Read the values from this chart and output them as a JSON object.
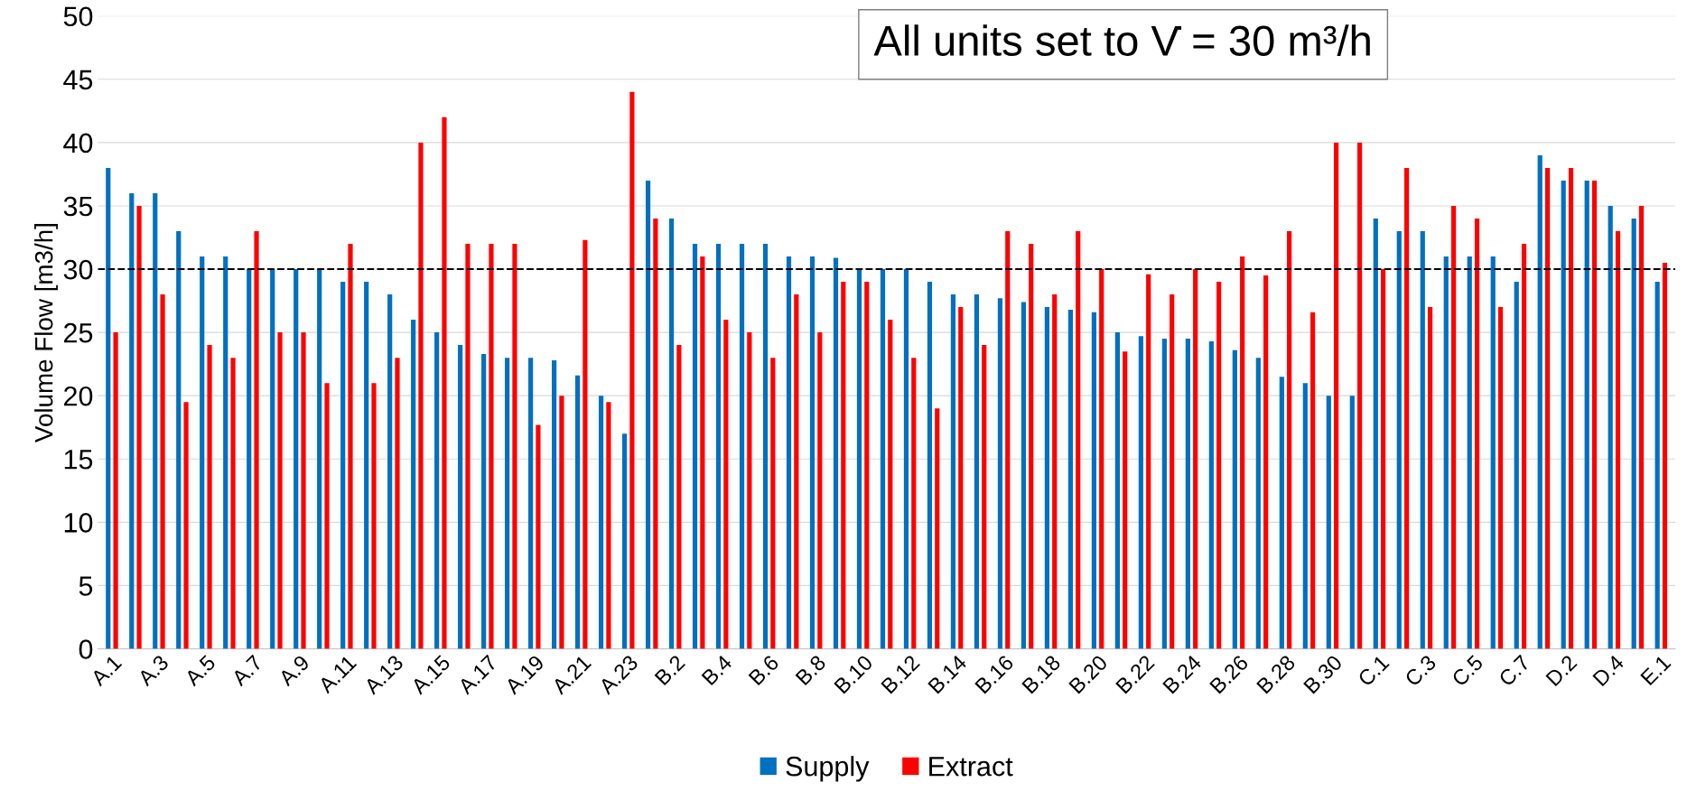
{
  "chart_data": {
    "type": "bar",
    "ylabel": "Volume Flow [m3/h]",
    "categories": [
      "A.1",
      null,
      "A.3",
      null,
      "A.5",
      null,
      "A.7",
      null,
      "A.9",
      null,
      "A.11",
      null,
      "A.13",
      null,
      "A.15",
      null,
      "A.17",
      null,
      "A.19",
      null,
      "A.21",
      null,
      "A.23",
      null,
      "B.2",
      null,
      "B.4",
      null,
      "B.6",
      null,
      "B.8",
      null,
      "B.10",
      null,
      "B.12",
      null,
      "B.14",
      null,
      "B.16",
      null,
      "B.18",
      null,
      "B.20",
      null,
      "B.22",
      null,
      "B.24",
      null,
      "B.26",
      null,
      "B.28",
      null,
      "B.30",
      null,
      "C.1",
      null,
      "C.3",
      null,
      "C.5",
      null,
      "C.7",
      null,
      "D.2",
      null,
      "D.4",
      null,
      "E.1"
    ],
    "series": [
      {
        "name": "Supply",
        "color": "#0070c0",
        "values": [
          38,
          36,
          36,
          33,
          31,
          31,
          30,
          30,
          30,
          30,
          29,
          29,
          28,
          26,
          25,
          24,
          23.3,
          23,
          23,
          22.8,
          21.6,
          20,
          17,
          37,
          34,
          32,
          32,
          32,
          32,
          31,
          31,
          30.9,
          30,
          30,
          30,
          29,
          28,
          28,
          27.7,
          27.4,
          27,
          26.8,
          26.6,
          25,
          24.7,
          24.5,
          24.5,
          24.3,
          23.6,
          23,
          21.5,
          21,
          20,
          20,
          34,
          33,
          33,
          31,
          31,
          31,
          29,
          39,
          37,
          37,
          35,
          34,
          29
        ]
      },
      {
        "name": "Extract",
        "color": "#ff0000",
        "values": [
          25,
          35,
          28,
          19.5,
          24,
          23,
          33,
          25,
          25,
          21,
          32,
          21,
          23,
          40,
          42,
          32,
          32,
          32,
          17.7,
          20,
          32.3,
          19.5,
          44,
          34,
          24,
          31,
          26,
          25,
          23,
          28,
          25,
          29,
          29,
          26,
          23,
          19,
          27,
          24,
          33,
          32,
          28,
          33,
          30,
          23.5,
          29.6,
          28,
          30,
          29,
          31,
          29.5,
          33,
          26.6,
          40,
          40,
          30,
          38,
          27,
          35,
          34,
          27,
          32,
          38,
          38,
          37,
          33,
          35,
          30.5
        ]
      }
    ],
    "ylim": [
      0,
      50
    ],
    "yticks": [
      0,
      5,
      10,
      15,
      20,
      25,
      30,
      35,
      40,
      45,
      50
    ],
    "grid": "y",
    "legend": "bottom",
    "ref_lines": [
      {
        "axis": "y",
        "value": 30,
        "color": "#000000",
        "line_style": "dashed"
      }
    ],
    "annotations": [
      "All units set to V̇ = 30 m³/h"
    ]
  }
}
